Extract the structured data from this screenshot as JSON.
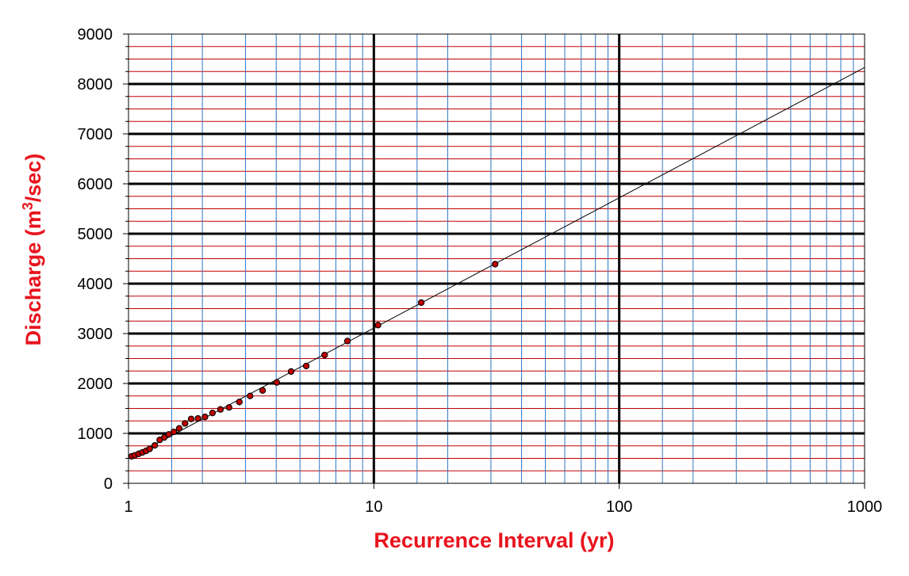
{
  "chart_data": {
    "type": "scatter",
    "title": "",
    "xlabel": "Recurrence Interval (yr)",
    "ylabel_parts": {
      "main": "Discharge (m",
      "sup": "3",
      "tail": "/sec)"
    },
    "xscale": "log",
    "xlim": [
      1,
      1000
    ],
    "ylim": [
      0,
      9000
    ],
    "x_ticks": [
      "1",
      "10",
      "100",
      "1000"
    ],
    "y_ticks": [
      "0",
      "1000",
      "2000",
      "3000",
      "4000",
      "5000",
      "6000",
      "7000",
      "8000",
      "9000"
    ],
    "grid": true,
    "legend": "none",
    "colors": {
      "axis_title": "#e8131d",
      "points": "#c00000",
      "point_edge": "#000000",
      "major_grid": "#000000",
      "minor_grid_y": "#c00000",
      "minor_grid_x": "#2e75c4",
      "trend_line": "#000000"
    },
    "series": [
      {
        "type": "scatter",
        "points": [
          [
            1.03,
            540
          ],
          [
            1.06,
            560
          ],
          [
            1.1,
            590
          ],
          [
            1.14,
            620
          ],
          [
            1.18,
            650
          ],
          [
            1.22,
            690
          ],
          [
            1.28,
            760
          ],
          [
            1.34,
            870
          ],
          [
            1.4,
            920
          ],
          [
            1.46,
            980
          ],
          [
            1.53,
            1030
          ],
          [
            1.61,
            1100
          ],
          [
            1.7,
            1200
          ],
          [
            1.8,
            1290
          ],
          [
            1.92,
            1300
          ],
          [
            2.05,
            1330
          ],
          [
            2.2,
            1410
          ],
          [
            2.37,
            1480
          ],
          [
            2.57,
            1520
          ],
          [
            2.83,
            1630
          ],
          [
            3.13,
            1750
          ],
          [
            3.52,
            1860
          ],
          [
            4.02,
            2020
          ],
          [
            4.6,
            2240
          ],
          [
            5.3,
            2350
          ],
          [
            6.3,
            2570
          ],
          [
            7.8,
            2850
          ],
          [
            10.4,
            3170
          ],
          [
            15.6,
            3620
          ],
          [
            31.2,
            4390
          ]
        ]
      },
      {
        "type": "line",
        "points": [
          [
            1,
            500
          ],
          [
            1000,
            8330
          ]
        ]
      }
    ]
  }
}
